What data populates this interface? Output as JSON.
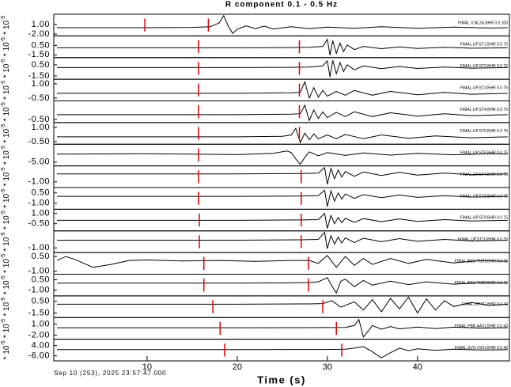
{
  "chart_data": {
    "type": "line",
    "title": "R component 0.1 - 0.5 Hz",
    "xlabel": "Time (s)",
    "date": "Sep 10 (253), 2025 23:57:47.000",
    "unit_base": "* 10",
    "unit_exponent": "-5",
    "xlim": [
      -0.35,
      50.2
    ],
    "xticks": [
      10,
      20,
      30,
      40
    ],
    "line_color": "#000000",
    "pick_color": "#e00000",
    "traces": [
      {
        "label": "FIMAL.V.NL2A.BHR 0.0 100",
        "ylim": [
          -2.6,
          4.25
        ],
        "yticks": [
          {
            "value": 1,
            "label": "1.00"
          },
          {
            "value": -2,
            "label": "-2.00"
          }
        ],
        "picks": [
          9.75,
          16.8
        ],
        "x": [
          0,
          5,
          10,
          15,
          17,
          18,
          18.5,
          19,
          19.5,
          20,
          21,
          22,
          23,
          24,
          26,
          28,
          30,
          33,
          36,
          40,
          44,
          48,
          50
        ],
        "values": [
          0,
          0,
          0,
          0.1,
          0.3,
          1.5,
          3.8,
          0.5,
          -1.8,
          -0.5,
          0.6,
          -0.3,
          0.5,
          -0.4,
          0.3,
          -0.3,
          0.2,
          -0.2,
          0.3,
          -0.2,
          0.2,
          -0.1,
          0
        ]
      },
      {
        "label": "FIMAL.UP.ST1.BHR 0.0 75",
        "ylim": [
          -2.07,
          2.5
        ],
        "yticks": [
          {
            "value": 0.5,
            "label": "0.50"
          },
          {
            "value": -1.5,
            "label": "-1.50"
          }
        ],
        "picks": [
          15.7,
          26.9
        ],
        "x": [
          0,
          10,
          20,
          26,
          28,
          29.5,
          30,
          30.3,
          30.6,
          31,
          31.4,
          31.8,
          32.2,
          33,
          34,
          36,
          38,
          40,
          43,
          46,
          50
        ],
        "values": [
          0,
          0,
          0,
          0.05,
          0.1,
          0.3,
          1.8,
          -1.6,
          1.5,
          -1.2,
          1.0,
          -0.8,
          0.6,
          -0.4,
          0.3,
          -0.2,
          0.2,
          -0.15,
          0.1,
          -0.1,
          0
        ]
      },
      {
        "label": "FIMAL.UP.ST2.BHR 0.0 75",
        "ylim": [
          -2.1,
          1.81
        ],
        "yticks": [
          {
            "value": 0.5,
            "label": "0.50"
          },
          {
            "value": -1.5,
            "label": "-1.50"
          }
        ],
        "picks": [
          15.7,
          26.9
        ],
        "x": [
          0,
          10,
          20,
          26,
          28,
          29.5,
          30,
          30.3,
          30.6,
          31,
          31.4,
          31.8,
          32.2,
          33,
          34,
          36,
          38,
          40,
          43,
          46,
          50
        ],
        "values": [
          0,
          0,
          0,
          0.05,
          0.1,
          0.3,
          1.2,
          -1.7,
          1.3,
          -1.1,
          0.9,
          -0.7,
          0.5,
          -0.4,
          0.3,
          -0.2,
          0.2,
          -0.15,
          0.1,
          -0.1,
          0
        ]
      },
      {
        "label": "FIMAL.UP.ST3.BHR 0.0 75",
        "ylim": [
          -0.8,
          1.48
        ],
        "yticks": [
          {
            "value": 1,
            "label": "1.00"
          },
          {
            "value": -0.5,
            "label": "-0.50"
          }
        ],
        "picks": [
          15.7,
          26.9
        ],
        "x": [
          0,
          10,
          20,
          26,
          27,
          27.5,
          28,
          28.5,
          29,
          29.5,
          30,
          31,
          32,
          33,
          35,
          37,
          40,
          43,
          46,
          50
        ],
        "values": [
          0,
          0,
          0,
          0.05,
          0.1,
          1.2,
          -0.5,
          0.6,
          -0.4,
          0.3,
          -0.3,
          0.2,
          -0.2,
          0.3,
          -0.2,
          0.2,
          -0.15,
          0.1,
          -0.1,
          0
        ]
      },
      {
        "label": "FIMAL.UP.ST4.BHR 0.0 75",
        "ylim": [
          -0.83,
          1.45
        ],
        "yticks": [
          {
            "value": -0.5,
            "label": "-0.50"
          }
        ],
        "picks": [
          15.7,
          26.9
        ],
        "x": [
          0,
          10,
          20,
          26,
          27,
          27.5,
          28,
          28.5,
          29,
          29.5,
          30,
          31,
          32,
          33,
          35,
          37,
          40,
          43,
          46,
          50
        ],
        "values": [
          0,
          0,
          0,
          0.05,
          0.1,
          1.0,
          -0.6,
          0.5,
          -0.4,
          0.3,
          -0.3,
          0.25,
          -0.2,
          0.3,
          -0.2,
          0.2,
          -0.15,
          0.1,
          -0.1,
          0
        ]
      },
      {
        "label": "FIMAL.UP.ST5.BHR 0.0 75",
        "ylim": [
          -0.78,
          1.5
        ],
        "yticks": [
          {
            "value": 1,
            "label": "1.00"
          },
          {
            "value": -0.5,
            "label": "-0.50"
          }
        ],
        "picks": [
          15.7,
          26.9
        ],
        "x": [
          0,
          10,
          20,
          25,
          26,
          26.5,
          27,
          27.5,
          28,
          28.5,
          29,
          30,
          31,
          32,
          34,
          36,
          39,
          42,
          46,
          50
        ],
        "values": [
          0,
          0,
          0,
          0.05,
          0.2,
          0.9,
          -0.6,
          0.4,
          -0.3,
          0.3,
          -0.2,
          0.2,
          -0.2,
          0.25,
          -0.2,
          0.2,
          -0.15,
          0.1,
          -0.1,
          0
        ]
      },
      {
        "label": "FIMAL.UP.ST6.BHR 0.0 75",
        "ylim": [
          -7.4,
          6.3
        ],
        "yticks": [
          {
            "value": -5,
            "label": "-5.00"
          }
        ],
        "picks": [
          15.7
        ],
        "x": [
          0,
          10,
          20,
          24,
          25.5,
          26,
          26.5,
          27,
          27.5,
          28,
          29,
          30,
          32,
          34,
          37,
          40,
          44,
          48,
          50
        ],
        "values": [
          0,
          0.3,
          -0.3,
          0.5,
          2,
          1,
          -3,
          -6.5,
          -2,
          1.5,
          -1,
          1,
          -0.8,
          0.8,
          -0.6,
          0.5,
          -0.4,
          0.3,
          0
        ]
      },
      {
        "label": "FIMAL.UP.ST7.BHR 0.0 75",
        "ylim": [
          -1.72,
          1.02
        ],
        "yticks": [
          {
            "value": -1,
            "label": "-1.00"
          }
        ],
        "picks": [
          15.7,
          27.1
        ],
        "x": [
          0,
          10,
          20,
          27,
          29,
          29.7,
          30,
          30.4,
          30.8,
          31.2,
          31.6,
          32,
          33,
          34,
          36,
          38,
          40,
          43,
          46,
          50
        ],
        "values": [
          0,
          0,
          0,
          0.05,
          0.1,
          0.8,
          -1.3,
          0.7,
          -0.6,
          0.5,
          -0.4,
          0.3,
          -0.3,
          0.25,
          -0.2,
          0.2,
          -0.15,
          0.1,
          -0.1,
          0
        ]
      },
      {
        "label": "FIMAL.UP.ST8.BHR 0.0 75",
        "ylim": [
          -1.88,
          1.28
        ],
        "yticks": [
          {
            "value": 0.5,
            "label": "0.50"
          },
          {
            "value": -1,
            "label": "-1.00"
          }
        ],
        "picks": [
          15.7,
          27.1
        ],
        "x": [
          0,
          10,
          20,
          27,
          29,
          29.7,
          30,
          30.4,
          30.8,
          31.2,
          31.6,
          32,
          33,
          34,
          36,
          38,
          40,
          43,
          46,
          50
        ],
        "values": [
          0,
          0,
          0,
          0.05,
          0.1,
          0.9,
          -1.5,
          0.8,
          -0.7,
          0.5,
          -0.4,
          0.35,
          -0.3,
          0.25,
          -0.2,
          0.2,
          -0.15,
          0.1,
          -0.1,
          0
        ]
      },
      {
        "label": "FIMAL.UP.ST9.BHR 0.0 75",
        "ylim": [
          -1.55,
          1.62
        ],
        "yticks": [
          {
            "value": 1,
            "label": "1.00"
          },
          {
            "value": -0.5,
            "label": "-0.50"
          }
        ],
        "picks": [
          15.8,
          27.1
        ],
        "x": [
          0,
          10,
          20,
          27,
          29,
          29.7,
          30,
          30.4,
          30.8,
          31.2,
          31.6,
          32,
          33,
          34,
          36,
          38,
          40,
          43,
          46,
          50
        ],
        "values": [
          0,
          0,
          0,
          0.05,
          0.1,
          1.0,
          -1.2,
          0.7,
          -0.5,
          0.4,
          -0.35,
          0.3,
          -0.3,
          0.25,
          -0.2,
          0.2,
          -0.15,
          0.1,
          -0.1,
          0
        ]
      },
      {
        "label": "FIMAL.UP.ST10.BHR 0.0 75",
        "ylim": [
          -1.6,
          1.2
        ],
        "yticks": [
          {
            "value": -1,
            "label": "-1.00"
          }
        ],
        "picks": [
          15.8,
          27.1
        ],
        "x": [
          0,
          10,
          20,
          27,
          29,
          29.7,
          30,
          30.4,
          30.8,
          31.2,
          31.6,
          32,
          33,
          34,
          36,
          38,
          40,
          43,
          46,
          50
        ],
        "values": [
          0,
          0,
          0,
          0.05,
          0.1,
          1.0,
          -1.1,
          0.6,
          -0.5,
          0.4,
          -0.35,
          0.3,
          -0.3,
          0.25,
          -0.2,
          0.2,
          -0.15,
          0.1,
          -0.1,
          0
        ]
      },
      {
        "label": "FIMAL.BSU.TU01.BHR 0.0 75",
        "ylim": [
          -1.3,
          0.9
        ],
        "yticks": [
          {
            "value": 0.5,
            "label": "0.50"
          },
          {
            "value": -1,
            "label": "-1.00"
          }
        ],
        "picks": [
          16.3,
          27.9
        ],
        "x": [
          0,
          1,
          2,
          4,
          6,
          8,
          10,
          14,
          18,
          22,
          26,
          28,
          29,
          30,
          31,
          32,
          33,
          34,
          35,
          37,
          39,
          41,
          44,
          47,
          50
        ],
        "values": [
          0.1,
          0.5,
          0.2,
          -0.6,
          -0.3,
          0.1,
          0.15,
          0.05,
          0.1,
          0,
          0.1,
          0.1,
          -0.2,
          0.6,
          -0.6,
          0.5,
          -0.4,
          0.3,
          -0.3,
          0.3,
          -0.2,
          0.2,
          -0.15,
          0.1,
          0
        ]
      },
      {
        "label": "FIMAL.BSU.TU02.BHR 0.0 75",
        "ylim": [
          -1.85,
          1.31
        ],
        "yticks": [
          {
            "value": 0.5,
            "label": "0.50"
          },
          {
            "value": -1,
            "label": "-1.00"
          }
        ],
        "picks": [
          16.3,
          27.9
        ],
        "x": [
          0,
          10,
          20,
          26,
          28,
          29,
          30,
          30.5,
          31,
          31.5,
          32,
          33,
          34,
          35,
          37,
          39,
          41,
          44,
          47,
          50
        ],
        "values": [
          0,
          0,
          0,
          0.05,
          0.1,
          0.2,
          0.8,
          -0.4,
          -1.4,
          0.3,
          0.6,
          -0.5,
          0.4,
          -0.3,
          0.3,
          -0.2,
          0.2,
          -0.15,
          0.1,
          0
        ]
      },
      {
        "label": "FIMAL.UP.PC.BHR 0.0 40",
        "ylim": [
          -2.28,
          1.42
        ],
        "yticks": [
          {
            "value": 0.5,
            "label": "0.50"
          },
          {
            "value": -1.5,
            "label": "-1.50"
          }
        ],
        "picks": [
          17.3,
          29.5
        ],
        "x": [
          0,
          10,
          20,
          28,
          29.5,
          30.5,
          31.5,
          33,
          34,
          35,
          36,
          37,
          38,
          39,
          40,
          41,
          42,
          43,
          44,
          46,
          48,
          50
        ],
        "values": [
          0,
          0,
          0,
          0.05,
          0.1,
          0.6,
          -0.5,
          0.4,
          -1.0,
          0.8,
          -1.3,
          1.0,
          -0.8,
          1.2,
          -1.5,
          0.9,
          -1.0,
          0.6,
          -0.4,
          0.3,
          -0.2,
          0
        ]
      },
      {
        "label": "FIMAL.PBB.AA01.BHR 0.0 40",
        "ylim": [
          -3.1,
          2.75
        ],
        "yticks": [
          {
            "value": 1,
            "label": "1.00"
          },
          {
            "value": -2,
            "label": "-2.00"
          }
        ],
        "picks": [
          18.1,
          31.0
        ],
        "x": [
          0,
          10,
          20,
          30,
          32,
          33,
          33.5,
          34,
          34.5,
          35,
          36,
          37,
          38,
          40,
          42,
          44,
          47,
          50
        ],
        "values": [
          0,
          0,
          0,
          0.05,
          0.1,
          0.6,
          2.2,
          -2.5,
          -1.0,
          0.6,
          -0.4,
          0.3,
          -0.3,
          0.2,
          -0.2,
          0.15,
          -0.1,
          0
        ]
      },
      {
        "label": "FIMAL.SVS.VS01.BHR 0.0 40",
        "ylim": [
          -10.9,
          10.15
        ],
        "yticks": [
          {
            "value": 4,
            "label": "4.00"
          },
          {
            "value": -6,
            "label": "-6.00"
          }
        ],
        "picks": [
          18.6,
          31.6
        ],
        "x": [
          0,
          10,
          20,
          30,
          32,
          33,
          34,
          35,
          36,
          37,
          38,
          39,
          40,
          42,
          44,
          47,
          50
        ],
        "values": [
          0,
          0,
          0,
          0.2,
          0.5,
          1.5,
          3,
          -2,
          -8,
          -3,
          1.5,
          -1,
          0.8,
          -0.6,
          0.5,
          -0.3,
          0
        ]
      }
    ]
  }
}
